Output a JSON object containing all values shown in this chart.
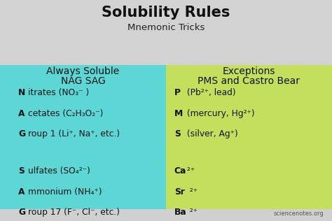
{
  "title": "Solubility Rules",
  "subtitle": "Mnemonic Tricks",
  "left_header1": "Always Soluble",
  "left_header2": "NAG SAG",
  "right_header1": "Exceptions",
  "right_header2": "PMS and Castro Bear",
  "left_color": "#5DD6D6",
  "right_color": "#C4DF5C",
  "header_bg_top": "#D8D8D8",
  "header_bg_bottom": "#C8C8C8",
  "title_fontsize": 15,
  "subtitle_fontsize": 9.5,
  "col_header_fontsize": 10,
  "body_fontsize": 8.8,
  "watermark": "sciencenotes.org",
  "left_items": [
    {
      "bold_char": "N",
      "rest": "itrates (NO₃⁻ )"
    },
    {
      "bold_char": "A",
      "rest": "cetates (C₂H₃O₂⁻)"
    },
    {
      "bold_char": "G",
      "rest": "roup 1 (Li⁺, Na⁺, etc.)"
    },
    null,
    {
      "bold_char": "S",
      "rest": "ulfates (SO₄²⁻)"
    },
    {
      "bold_char": "A",
      "rest": "mmonium (NH₄⁺)"
    },
    {
      "bold_char": "G",
      "rest": "roup 17 (F⁻, Cl⁻, etc.)"
    }
  ],
  "right_items": [
    {
      "bold_char": "P",
      "rest": " (Pb²⁺, lead)"
    },
    {
      "bold_char": "M",
      "rest": " (mercury, Hg²⁺)"
    },
    {
      "bold_char": "S",
      "rest": " (silver, Ag⁺)"
    },
    null,
    {
      "bold_char": "Ca",
      "rest": " ²⁺",
      "bold_only": true
    },
    {
      "bold_char": "Sr",
      "rest": "  ²⁺",
      "bold_only": true
    },
    {
      "bold_char": "Ba",
      "rest": "  ²⁺",
      "bold_only": true
    }
  ]
}
